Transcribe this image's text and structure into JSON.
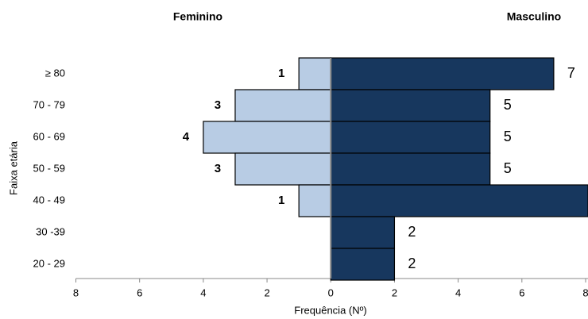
{
  "chart_data": {
    "type": "pyramid",
    "x_label": "Frequência (Nº)",
    "y_label": "Faixa etária",
    "categories": [
      "≥ 80",
      "70 - 79",
      "60 - 69",
      "50 - 59",
      "40 - 49",
      "30 -39",
      "20 - 29"
    ],
    "series": [
      {
        "name": "Feminino",
        "color": "#b8cce4",
        "values": [
          1,
          3,
          4,
          3,
          1,
          null,
          null
        ]
      },
      {
        "name": "Masculino",
        "color": "#17375e",
        "values": [
          7,
          5,
          5,
          5,
          9,
          2,
          2
        ]
      }
    ],
    "xlim": [
      -8,
      8
    ],
    "xticks": [
      {
        "value": -8,
        "label": "8"
      },
      {
        "value": -6,
        "label": "6"
      },
      {
        "value": -4,
        "label": "4"
      },
      {
        "value": -2,
        "label": "2"
      },
      0,
      2,
      4,
      6,
      8
    ]
  }
}
